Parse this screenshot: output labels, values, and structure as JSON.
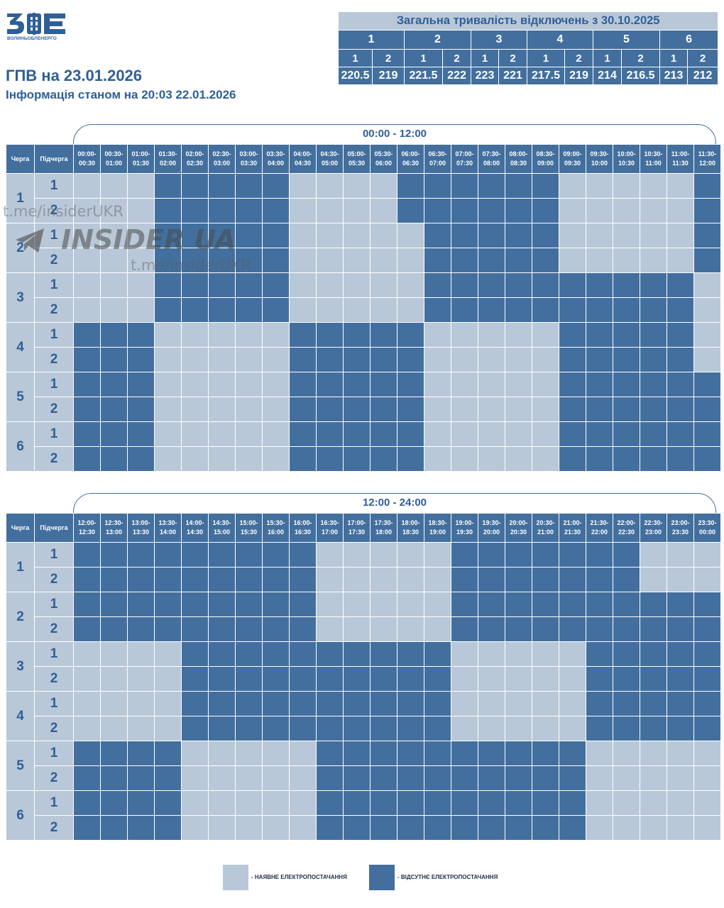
{
  "header": {
    "logo_sub": "ВОЛИНЬОБЛЕНЕРГО",
    "title": "ГПВ на 23.01.2026",
    "subtitle": "Інформація станом на 20:03 22.01.2026"
  },
  "summary": {
    "title": "Загальна тривалість відключень з 30.10.2025",
    "groups": [
      "1",
      "2",
      "3",
      "4",
      "5",
      "6"
    ],
    "subgroups": [
      "1",
      "2"
    ],
    "values": [
      "220.5",
      "219",
      "221.5",
      "222",
      "223",
      "221",
      "217.5",
      "219",
      "214",
      "216.5",
      "213",
      "212"
    ]
  },
  "headers": {
    "queue": "Черга",
    "subqueue": "Підчерга"
  },
  "colors": {
    "power_on": "#b9c8d8",
    "power_off": "#426f9e",
    "text": "#2f5f97"
  },
  "tables": [
    {
      "label": "00:00 - 12:00",
      "slots": [
        [
          "00:00-",
          "00:30"
        ],
        [
          "00:30-",
          "01:00"
        ],
        [
          "01:00-",
          "01:30"
        ],
        [
          "01:30-",
          "02:00"
        ],
        [
          "02:00-",
          "02:30"
        ],
        [
          "02:30-",
          "03:00"
        ],
        [
          "03:00-",
          "03:30"
        ],
        [
          "03:30-",
          "04:00"
        ],
        [
          "04:00-",
          "04:30"
        ],
        [
          "04:30-",
          "05:00"
        ],
        [
          "05:00-",
          "05:30"
        ],
        [
          "05:30-",
          "06:00"
        ],
        [
          "06:00-",
          "06:30"
        ],
        [
          "06:30-",
          "07:00"
        ],
        [
          "07:00-",
          "07:30"
        ],
        [
          "07:30-",
          "08:00"
        ],
        [
          "08:00-",
          "08:30"
        ],
        [
          "08:30-",
          "09:00"
        ],
        [
          "09:00-",
          "09:30"
        ],
        [
          "09:30-",
          "10:00"
        ],
        [
          "10:00-",
          "10:30"
        ],
        [
          "10:30-",
          "11:00"
        ],
        [
          "11:00-",
          "11:30"
        ],
        [
          "11:30-",
          "12:00"
        ]
      ],
      "rows": [
        {
          "queue": "1",
          "sub": "1",
          "cells": "000111110000111111000001"
        },
        {
          "queue": "1",
          "sub": "2",
          "cells": "000111110000111111000001"
        },
        {
          "queue": "2",
          "sub": "1",
          "cells": "000111110000011111000001"
        },
        {
          "queue": "2",
          "sub": "2",
          "cells": "000111110000011111000001"
        },
        {
          "queue": "3",
          "sub": "1",
          "cells": "000111110000011111111110"
        },
        {
          "queue": "3",
          "sub": "2",
          "cells": "000111110000011111111110"
        },
        {
          "queue": "4",
          "sub": "1",
          "cells": "111000001111100000111110"
        },
        {
          "queue": "4",
          "sub": "2",
          "cells": "111000001111100000111110"
        },
        {
          "queue": "5",
          "sub": "1",
          "cells": "111000001111100000111111"
        },
        {
          "queue": "5",
          "sub": "2",
          "cells": "111000001111100000111111"
        },
        {
          "queue": "6",
          "sub": "1",
          "cells": "111000001111100000111111"
        },
        {
          "queue": "6",
          "sub": "2",
          "cells": "111000001111100000111111"
        }
      ]
    },
    {
      "label": "12:00 - 24:00",
      "slots": [
        [
          "12:00-",
          "12:30"
        ],
        [
          "12:30-",
          "13:00"
        ],
        [
          "13:00-",
          "13:30"
        ],
        [
          "13:30-",
          "14:00"
        ],
        [
          "14:00-",
          "14:30"
        ],
        [
          "14:30-",
          "15:00"
        ],
        [
          "15:00-",
          "15:30"
        ],
        [
          "15:30-",
          "16:00"
        ],
        [
          "16:00-",
          "16:30"
        ],
        [
          "16:30-",
          "17:00"
        ],
        [
          "17:00-",
          "17:30"
        ],
        [
          "17:30-",
          "18:00"
        ],
        [
          "18:00-",
          "18:30"
        ],
        [
          "18:30-",
          "19:00"
        ],
        [
          "19:00-",
          "19:30"
        ],
        [
          "19:30-",
          "20:00"
        ],
        [
          "20:00-",
          "20:30"
        ],
        [
          "20:30-",
          "21:00"
        ],
        [
          "21:00-",
          "21:30"
        ],
        [
          "21:30-",
          "22:00"
        ],
        [
          "22:00-",
          "22:30"
        ],
        [
          "22:30-",
          "23:00"
        ],
        [
          "23:00-",
          "23:30"
        ],
        [
          "23:30-",
          "00:00"
        ]
      ],
      "rows": [
        {
          "queue": "1",
          "sub": "1",
          "cells": "111111111000001111111000"
        },
        {
          "queue": "1",
          "sub": "2",
          "cells": "111111111000001111111000"
        },
        {
          "queue": "2",
          "sub": "1",
          "cells": "111111111000001111111111"
        },
        {
          "queue": "2",
          "sub": "2",
          "cells": "111111111000001111111111"
        },
        {
          "queue": "3",
          "sub": "1",
          "cells": "000011111111110000011111"
        },
        {
          "queue": "3",
          "sub": "2",
          "cells": "000011111111110000011111"
        },
        {
          "queue": "4",
          "sub": "1",
          "cells": "000011111111110000011111"
        },
        {
          "queue": "4",
          "sub": "2",
          "cells": "000011111111110000011111"
        },
        {
          "queue": "5",
          "sub": "1",
          "cells": "111100000111111111100000"
        },
        {
          "queue": "5",
          "sub": "2",
          "cells": "111100000111111111100000"
        },
        {
          "queue": "6",
          "sub": "1",
          "cells": "111100000111111111100000"
        },
        {
          "queue": "6",
          "sub": "2",
          "cells": "111100000111111111100000"
        }
      ]
    }
  ],
  "watermark": {
    "link_top": "t.me/insiderUKR",
    "brand": "INSIDER UA",
    "link_bottom": "t.me/insiderUKR"
  },
  "legend": {
    "on_label": "- НАЯВНЕ ЕЛЕКТРОПОСТАЧАННЯ",
    "off_label": "- ВІДСУТНЄ ЕЛЕКТРОПОСТАЧАННЯ"
  }
}
